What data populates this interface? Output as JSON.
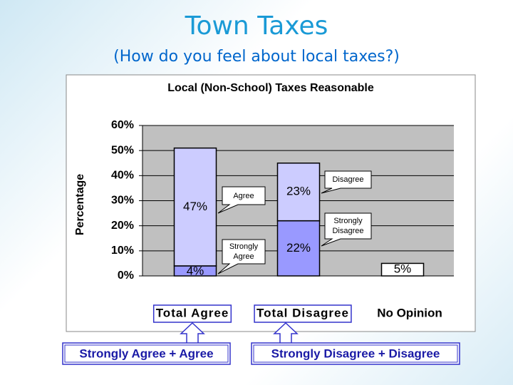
{
  "header": {
    "title": "Town Taxes",
    "subtitle": "(How do you feel about local taxes?)"
  },
  "chart_data": {
    "type": "bar",
    "stacked": true,
    "title": "Local (Non-School) Taxes Reasonable",
    "y_label": "Percentage",
    "categories": [
      "Total Agree",
      "Total Disagree",
      "No Opinion"
    ],
    "series": [
      {
        "colors": [
          "#9999ff",
          "#9999ff",
          "#ffffff"
        ],
        "values": [
          4,
          22,
          5
        ],
        "value_labels": [
          "4%",
          "22%",
          "5%"
        ]
      },
      {
        "colors": [
          "#ccccff",
          "#ccccff",
          "#ccccff"
        ],
        "values": [
          47,
          23,
          null
        ],
        "value_labels": [
          "47%",
          "23%",
          null
        ]
      }
    ],
    "ylim": [
      0,
      60
    ],
    "yticks": [
      {
        "value": 0,
        "label": "0%"
      },
      {
        "value": 10,
        "label": "10%"
      },
      {
        "value": 20,
        "label": "20%"
      },
      {
        "value": 30,
        "label": "30%"
      },
      {
        "value": 40,
        "label": "40%"
      },
      {
        "value": 50,
        "label": "50%"
      },
      {
        "value": 60,
        "label": "60%"
      }
    ],
    "grid": true,
    "plot_background": "#c0c0c0",
    "annotations": [
      {
        "text": "Agree"
      },
      {
        "text": "Strongly Agree"
      },
      {
        "text": "Disagree"
      },
      {
        "text": "Strongly Disagree"
      }
    ]
  },
  "footer": {
    "boxes": [
      "Strongly Agree + Agree",
      "Strongly Disagree + Disagree"
    ]
  }
}
